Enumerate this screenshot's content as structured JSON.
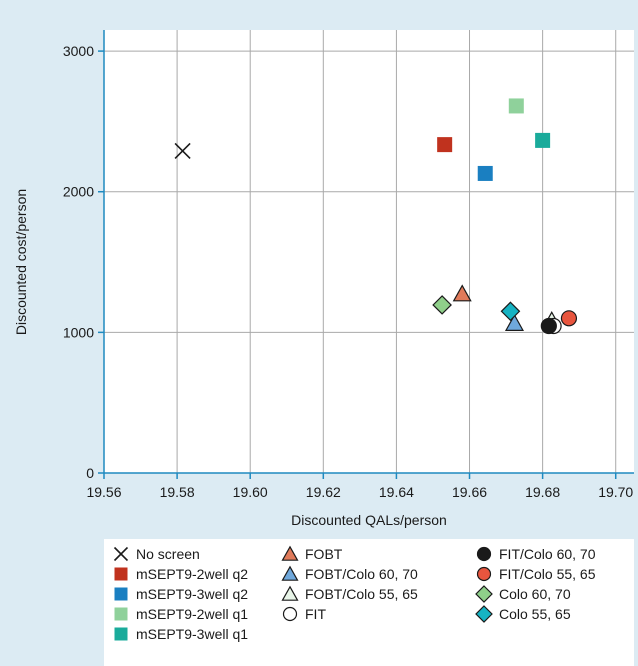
{
  "chart_data": {
    "type": "scatter",
    "xlabel": "Discounted QALs/person",
    "ylabel": "Discounted cost/person",
    "xlim": [
      19.56,
      19.705
    ],
    "ylim": [
      0,
      3150
    ],
    "x_ticks": [
      "19.56",
      "19.58",
      "19.60",
      "19.62",
      "19.64",
      "19.66",
      "19.68",
      "19.70"
    ],
    "y_ticks": [
      "0",
      "1000",
      "2000",
      "3000"
    ],
    "x_tick_values": [
      19.56,
      19.58,
      19.6,
      19.62,
      19.64,
      19.66,
      19.68,
      19.7
    ],
    "y_tick_values": [
      0,
      1000,
      2000,
      3000
    ],
    "grid": true,
    "legend_position": "bottom",
    "series": [
      {
        "name": "No screen",
        "marker": "x",
        "color": "#1a1a1a",
        "x": 19.5815,
        "y": 2290
      },
      {
        "name": "mSEPT9-2well q2",
        "marker": "square",
        "color": "#c0321e",
        "x": 19.6532,
        "y": 2335
      },
      {
        "name": "mSEPT9-3well q2",
        "marker": "square",
        "color": "#1a7fc1",
        "x": 19.6643,
        "y": 2130
      },
      {
        "name": "mSEPT9-2well q1",
        "marker": "square",
        "color": "#8fd19b",
        "x": 19.6728,
        "y": 2610
      },
      {
        "name": "mSEPT9-3well q1",
        "marker": "square",
        "color": "#1aab9b",
        "x": 19.68,
        "y": 2365
      },
      {
        "name": "FOBT",
        "marker": "triangle",
        "color": "#e07a5a",
        "x": 19.658,
        "y": 1275
      },
      {
        "name": "FOBT/Colo 60, 70",
        "marker": "triangle",
        "color": "#6fa8dc",
        "x": 19.6723,
        "y": 1065
      },
      {
        "name": "FOBT/Colo 55, 65",
        "marker": "triangle",
        "color": "#e8f5e8",
        "x": 19.6825,
        "y": 1085
      },
      {
        "name": "FIT",
        "marker": "circle",
        "color": "#ffffff",
        "x": 19.683,
        "y": 1045
      },
      {
        "name": "FIT/Colo 60, 70",
        "marker": "circle",
        "color": "#1a1a1a",
        "x": 19.6817,
        "y": 1045
      },
      {
        "name": "FIT/Colo 55, 65",
        "marker": "circle",
        "color": "#e8553e",
        "x": 19.6872,
        "y": 1100
      },
      {
        "name": "Colo 60, 70",
        "marker": "diamond",
        "color": "#8fcf8a",
        "x": 19.6525,
        "y": 1195
      },
      {
        "name": "Colo 55, 65",
        "marker": "diamond",
        "color": "#16b3c3",
        "x": 19.6712,
        "y": 1150
      }
    ]
  },
  "legend": {
    "columns": [
      [
        "No screen",
        "mSEPT9-2well q2",
        "mSEPT9-3well q2",
        "mSEPT9-2well q1",
        "mSEPT9-3well q1"
      ],
      [
        "FOBT",
        "FOBT/Colo 60, 70",
        "FOBT/Colo 55, 65",
        "FIT"
      ],
      [
        "FIT/Colo 60, 70",
        "FIT/Colo 55, 65",
        "Colo 60, 70",
        "Colo 55, 65"
      ]
    ]
  }
}
